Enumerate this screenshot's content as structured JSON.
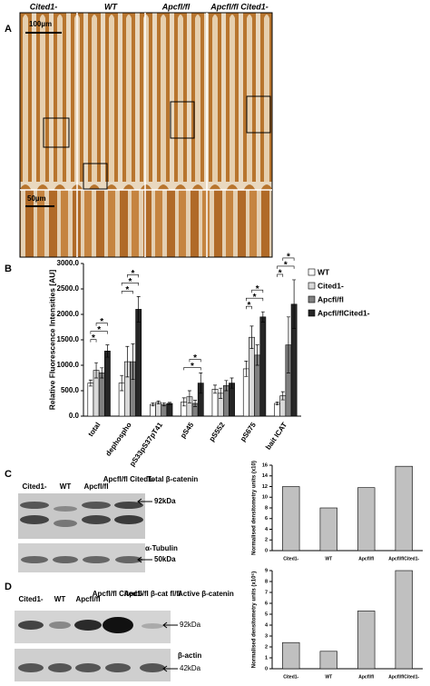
{
  "panel_a": {
    "label": "A",
    "columns": [
      "Cited1-",
      "WT",
      "Apcfl/fl",
      "Apcfl/fl Cited1-"
    ],
    "scale_top": "100µm",
    "scale_bottom": "50µm"
  },
  "panel_b": {
    "label": "B"
  },
  "panel_c": {
    "label": "C",
    "lanes": [
      "Cited1-",
      "WT",
      "Apcfl/fl",
      "Apcfl/fl Cited1-"
    ],
    "band_label": "Total β-catenin",
    "band_size": "92kDa",
    "control_label": "α-Tubulin",
    "control_size": "50kDa"
  },
  "panel_d": {
    "label": "D",
    "lanes": [
      "Cited1-",
      "WT",
      "Apcfl/fl",
      "Apcfl/fl Cited1-",
      "Apcfl/fl β-cat fl/fl"
    ],
    "band_label": "Active β-catenin",
    "band_size": "92kDa",
    "control_label": "β-actin",
    "control_size": "42kDa"
  },
  "chart_data": [
    {
      "type": "bar",
      "y_label": "Relative Fluorescence Intensities [AU]",
      "categories": [
        "total",
        "dephospho",
        "pS33pS37pT41",
        "pS45",
        "pS552",
        "pS675",
        "bait ICAT"
      ],
      "series": [
        {
          "name": "WT",
          "color": "#ffffff",
          "values": [
            650,
            650,
            230,
            280,
            530,
            930,
            250
          ],
          "errors": [
            60,
            150,
            30,
            80,
            80,
            150,
            30
          ]
        },
        {
          "name": "Cited1-",
          "color": "#d9d9d9",
          "values": [
            900,
            1070,
            270,
            380,
            450,
            1550,
            400
          ],
          "errors": [
            150,
            300,
            30,
            120,
            100,
            220,
            80
          ]
        },
        {
          "name": "Apcfl/fl",
          "color": "#808080",
          "values": [
            850,
            1070,
            230,
            250,
            600,
            1200,
            1400
          ],
          "errors": [
            100,
            350,
            30,
            60,
            100,
            200,
            550
          ]
        },
        {
          "name": "Apcfl/flCited1-",
          "color": "#262626",
          "values": [
            1280,
            2100,
            250,
            650,
            650,
            1950,
            2200
          ],
          "errors": [
            120,
            250,
            20,
            200,
            100,
            100,
            480
          ]
        }
      ],
      "significance": [
        {
          "category": 0,
          "pair": [
            0,
            1
          ],
          "label": "*"
        },
        {
          "category": 0,
          "pair": [
            0,
            3
          ],
          "label": "*"
        },
        {
          "category": 0,
          "pair": [
            1,
            3
          ],
          "label": "*"
        },
        {
          "category": 1,
          "pair": [
            0,
            2
          ],
          "label": "*"
        },
        {
          "category": 1,
          "pair": [
            0,
            3
          ],
          "label": "*"
        },
        {
          "category": 1,
          "pair": [
            1,
            3
          ],
          "label": "*"
        },
        {
          "category": 3,
          "pair": [
            0,
            3
          ],
          "label": "*"
        },
        {
          "category": 3,
          "pair": [
            1,
            3
          ],
          "label": "*"
        },
        {
          "category": 5,
          "pair": [
            0,
            1
          ],
          "label": "*"
        },
        {
          "category": 5,
          "pair": [
            0,
            3
          ],
          "label": "*"
        },
        {
          "category": 5,
          "pair": [
            1,
            3
          ],
          "label": "*"
        },
        {
          "category": 6,
          "pair": [
            0,
            1
          ],
          "label": "*"
        },
        {
          "category": 6,
          "pair": [
            0,
            3
          ],
          "label": "*"
        },
        {
          "category": 6,
          "pair": [
            1,
            3
          ],
          "label": "*"
        }
      ],
      "ylim": [
        0,
        3000
      ],
      "yticks": [
        {
          "value": 0,
          "label": "0.0"
        },
        {
          "value": 500,
          "label": "500.0"
        },
        {
          "value": 1000,
          "label": "1000.0"
        },
        {
          "value": 1500,
          "label": "1500.0"
        },
        {
          "value": 2000,
          "label": "2000.0"
        },
        {
          "value": 2500,
          "label": "2500.0"
        },
        {
          "value": 3000,
          "label": "3000.0"
        }
      ],
      "legend": "right"
    },
    {
      "type": "bar",
      "y_label": "Normalised densitometry units (x10)",
      "categories": [
        "Cited1-",
        "WT",
        "Apcfl/fl",
        "Apcfl/flCited1-"
      ],
      "values": [
        12,
        8,
        11.8,
        15.8
      ],
      "color": "#c0c0c0",
      "ylim": [
        0,
        16
      ],
      "yticks": [
        0,
        2,
        4,
        6,
        8,
        10,
        12,
        14,
        16
      ]
    },
    {
      "type": "bar",
      "y_label": "Normalised densitometry units (x10⁵)",
      "categories": [
        "Cited1-",
        "WT",
        "Apcfl/fl",
        "Apcfl/flCited1-"
      ],
      "values": [
        2.4,
        1.6,
        5.3,
        9
      ],
      "color": "#c0c0c0",
      "ylim": [
        0,
        9
      ],
      "yticks": [
        0,
        1,
        2,
        3,
        4,
        5,
        6,
        7,
        8,
        9
      ]
    }
  ]
}
